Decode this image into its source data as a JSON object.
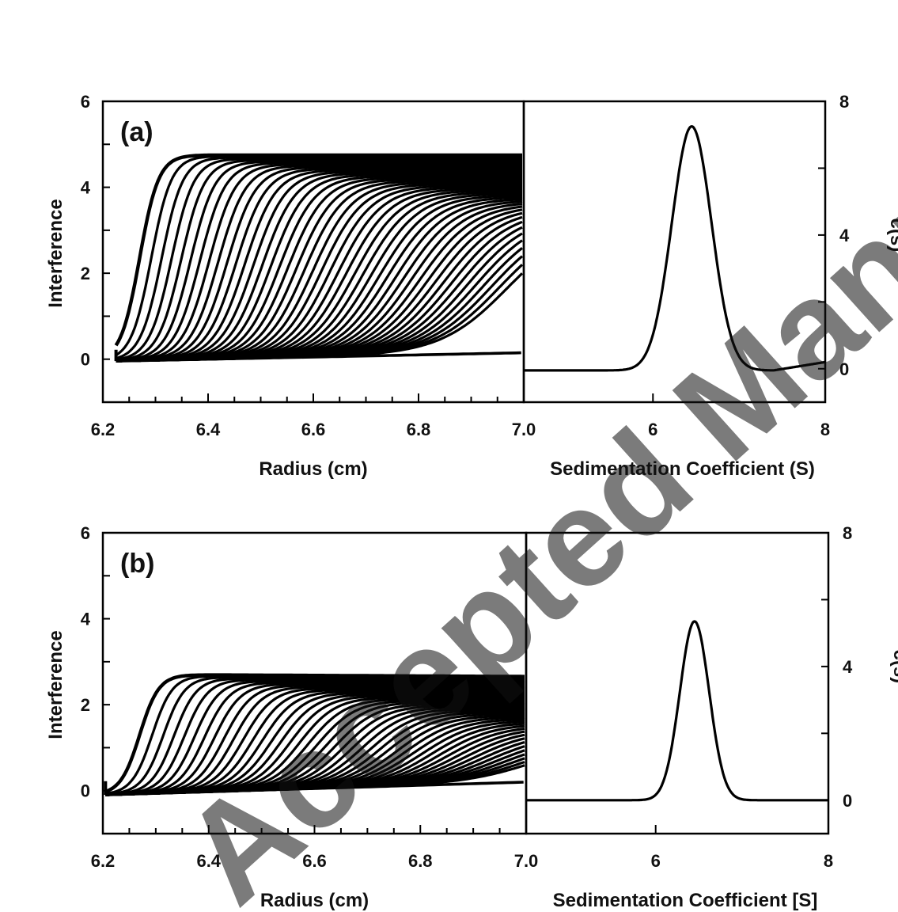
{
  "watermark": "Accepted Manuscript",
  "chart_data": [
    {
      "type": "line",
      "panel": "(a)",
      "xlabel": "Radius (cm)",
      "ylabel": "Interference",
      "xlim": [
        6.2,
        7.0
      ],
      "ylim": [
        -1,
        6
      ],
      "xticks": [
        "6.2",
        "6.4",
        "6.6",
        "6.8",
        "7.0"
      ],
      "yticks": [
        "0",
        "2",
        "4",
        "6"
      ],
      "scan_count": 44,
      "meniscus": 6.225,
      "plateau_start": 4.75,
      "plateau_end": 4.75,
      "baseline_start": -0.05,
      "baseline_end": 0.15,
      "first_boundary": 6.27,
      "last_boundary": 6.97,
      "final_plateau": 3.2
    },
    {
      "type": "line",
      "panel": "(a)",
      "xlabel": "Sedimentation Coefficient (S)",
      "ylabel": "c(s)",
      "xlim": [
        4.5,
        8
      ],
      "ylim": [
        -1,
        8
      ],
      "xticks": [
        "6",
        "8"
      ],
      "yticks": [
        "0",
        "4",
        "8"
      ],
      "peak_s": 6.45,
      "peak_value": 7.3,
      "peak_width": 0.23,
      "baseline": 0
    },
    {
      "type": "line",
      "panel": "(b)",
      "xlabel": "Radius (cm)",
      "ylabel": "Interference",
      "xlim": [
        6.2,
        7.0
      ],
      "ylim": [
        -1,
        6
      ],
      "xticks": [
        "6.2",
        "6.4",
        "6.6",
        "6.8",
        "7.0"
      ],
      "yticks": [
        "0",
        "2",
        "4",
        "6"
      ],
      "scan_count": 44,
      "meniscus": 6.205,
      "plateau_start": 2.7,
      "plateau_end": 2.55,
      "baseline_start": -0.1,
      "baseline_end": 0.2,
      "first_boundary": 6.27,
      "last_boundary": 7.02,
      "final_plateau": 1.3
    },
    {
      "type": "line",
      "panel": "(b)",
      "xlabel": "Sedimentation Coefficient [S]",
      "ylabel": "c(s)",
      "xlim": [
        4.5,
        8
      ],
      "ylim": [
        -1,
        8
      ],
      "xticks": [
        "6",
        "8"
      ],
      "yticks": [
        "0",
        "4",
        "8"
      ],
      "peak_s": 6.45,
      "peak_value": 5.35,
      "peak_width": 0.17,
      "baseline": 0
    }
  ]
}
